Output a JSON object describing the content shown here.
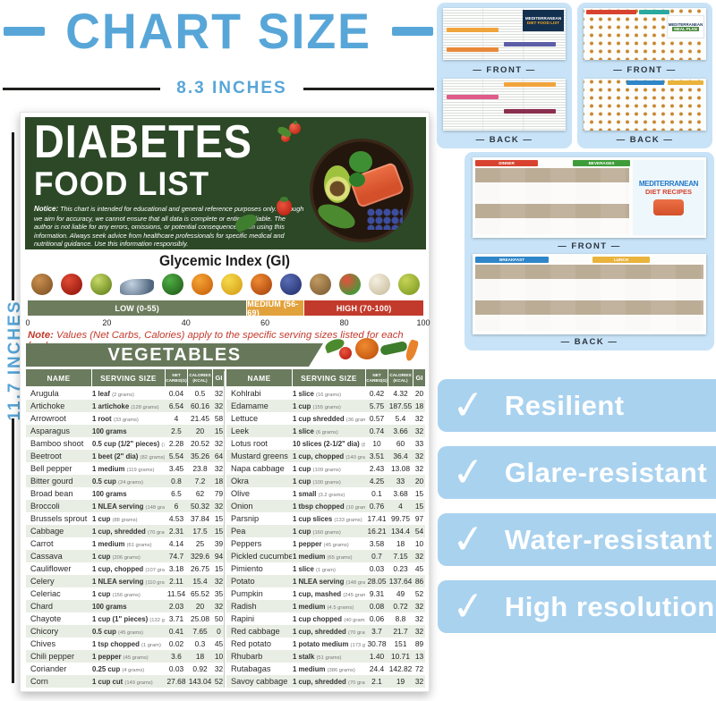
{
  "colors": {
    "accent_blue": "#58a6d8",
    "card_blue": "#c8e3f7",
    "badge_blue": "#a9d2ef",
    "poster_green": "#2c4827",
    "olive_green": "#6b7b5e",
    "low_band": "#6d7c5d",
    "medium_band": "#e2a23b",
    "high_band": "#c23a2b",
    "note_red": "#c3392c"
  },
  "size_banner": {
    "title": "CHART SIZE",
    "width_label": "8.3 INCHES",
    "height_label": "11.7 INCHES"
  },
  "poster": {
    "title_line1": "DIABETES",
    "title_line2": "FOOD LIST",
    "notice_bold": "Notice:",
    "notice_text": "This chart is intended for educational and general reference purposes only. Although we aim for accuracy, we cannot ensure that all data is complete or entirely reliable. The author is not liable for any errors, omissions, or potential consequences from using this information. Always seek advice from healthcare professionals for specific medical and nutritional guidance. Use this information responsibly.",
    "gi": {
      "title": "Glycemic Index (GI)",
      "icons": [
        {
          "name": "almonds",
          "c1": "#c98f4e",
          "c2": "#8a5a2b"
        },
        {
          "name": "apple",
          "c1": "#e04a35",
          "c2": "#9c1d10"
        },
        {
          "name": "avocado",
          "c1": "#c9d96a",
          "c2": "#6f8c22"
        },
        {
          "name": "fish",
          "c1": "#c3d2e2",
          "c2": "#51677f",
          "wide": true
        },
        {
          "name": "broccoli",
          "c1": "#4fae45",
          "c2": "#27691f"
        },
        {
          "name": "oranges",
          "c1": "#f5a435",
          "c2": "#d06a10"
        },
        {
          "name": "banana",
          "c1": "#f7d94c",
          "c2": "#d9a81e"
        },
        {
          "name": "pumpkin",
          "c1": "#ef8a32",
          "c2": "#b24e12"
        },
        {
          "name": "blueberries",
          "c1": "#5a6cb6",
          "c2": "#2b3a78"
        },
        {
          "name": "potato",
          "c1": "#c29a62",
          "c2": "#85653a"
        },
        {
          "name": "watermelon",
          "c1": "#e6503c",
          "c2": "#3f9c3a"
        },
        {
          "name": "rice",
          "c1": "#f4efdf",
          "c2": "#cfc4a7"
        },
        {
          "name": "guava",
          "c1": "#c6d457",
          "c2": "#88a229"
        }
      ],
      "bands": [
        {
          "label": "LOW (0-55)",
          "range": [
            0,
            55
          ]
        },
        {
          "label": "MEDIUM (56-69)",
          "range": [
            56,
            69
          ]
        },
        {
          "label": "HIGH (70-100)",
          "range": [
            70,
            100
          ]
        }
      ],
      "ticks": [
        "0",
        "20",
        "40",
        "60",
        "80",
        "100"
      ]
    },
    "note_bold": "Note:",
    "note_text": "Values (Net Carbs, Calories) apply to the specific serving sizes listed for each food",
    "table": {
      "section_title": "VEGETABLES",
      "headers": [
        "NAME",
        "SERVING SIZE",
        "NET CARBS(G)",
        "CALORIES (KCAL)",
        "GI"
      ],
      "left_rows": [
        {
          "name": "Arugula",
          "serving": "1 leaf",
          "detail": "(2 grams)",
          "carbs": "0.04",
          "cal": "0.5",
          "gi": "32"
        },
        {
          "name": "Artichoke",
          "serving": "1 artichoke",
          "detail": "(128 grams)",
          "carbs": "6.54",
          "cal": "60.16",
          "gi": "32"
        },
        {
          "name": "Arrowroot",
          "serving": "1 root",
          "detail": "(33 grams)",
          "carbs": "4",
          "cal": "21.45",
          "gi": "58"
        },
        {
          "name": "Asparagus",
          "serving": "100 grams",
          "detail": "",
          "carbs": "2.5",
          "cal": "20",
          "gi": "15"
        },
        {
          "name": "Bamboo shoot",
          "serving": "0.5 cup (1/2\" pieces)",
          "detail": "(76 grams)",
          "carbs": "2.28",
          "cal": "20.52",
          "gi": "32"
        },
        {
          "name": "Beetroot",
          "serving": "1 beet (2\" dia)",
          "detail": "(82 grams)",
          "carbs": "5.54",
          "cal": "35.26",
          "gi": "64"
        },
        {
          "name": "Bell pepper",
          "serving": "1 medium",
          "detail": "(119 grams)",
          "carbs": "3.45",
          "cal": "23.8",
          "gi": "32"
        },
        {
          "name": "Bitter gourd",
          "serving": "0.5 cup",
          "detail": "(24 grams)",
          "carbs": "0.8",
          "cal": "7.2",
          "gi": "18"
        },
        {
          "name": "Broad bean",
          "serving": "100 grams",
          "detail": "",
          "carbs": "6.5",
          "cal": "62",
          "gi": "79"
        },
        {
          "name": "Broccoli",
          "serving": "1 NLEA serving",
          "detail": "(148 grams)",
          "carbs": "6",
          "cal": "50.32",
          "gi": "32"
        },
        {
          "name": "Brussels sprout",
          "serving": "1 cup",
          "detail": "(88 grams)",
          "carbs": "4.53",
          "cal": "37.84",
          "gi": "15"
        },
        {
          "name": "Cabbage",
          "serving": "1 cup, shredded",
          "detail": "(70 grams)",
          "carbs": "2.31",
          "cal": "17.5",
          "gi": "15"
        },
        {
          "name": "Carrot",
          "serving": "1 medium",
          "detail": "(61 grams)",
          "carbs": "4.14",
          "cal": "25",
          "gi": "39"
        },
        {
          "name": "Cassava",
          "serving": "1 cup",
          "detail": "(206 grams)",
          "carbs": "74.7",
          "cal": "329.6",
          "gi": "94"
        },
        {
          "name": "Cauliflower",
          "serving": "1 cup, chopped",
          "detail": "(107 grams)",
          "carbs": "3.18",
          "cal": "26.75",
          "gi": "15"
        },
        {
          "name": "Celery",
          "serving": "1 NLEA serving",
          "detail": "(110 grams)",
          "carbs": "2.11",
          "cal": "15.4",
          "gi": "32"
        },
        {
          "name": "Celeriac",
          "serving": "1 cup",
          "detail": "(156 grams)",
          "carbs": "11.54",
          "cal": "65.52",
          "gi": "35"
        },
        {
          "name": "Chard",
          "serving": "100 grams",
          "detail": "",
          "carbs": "2.03",
          "cal": "20",
          "gi": "32"
        },
        {
          "name": "Chayote",
          "serving": "1 cup (1\" pieces)",
          "detail": "(132 grams)",
          "carbs": "3.71",
          "cal": "25.08",
          "gi": "50"
        },
        {
          "name": "Chicory",
          "serving": "0.5 cup",
          "detail": "(45 grams)",
          "carbs": "0.41",
          "cal": "7.65",
          "gi": "0"
        },
        {
          "name": "Chives",
          "serving": "1 tsp chopped",
          "detail": "(1 gram)",
          "carbs": "0.02",
          "cal": "0.3",
          "gi": "45"
        },
        {
          "name": "Chili pepper",
          "serving": "1 pepper",
          "detail": "(45 grams)",
          "carbs": "3.6",
          "cal": "18",
          "gi": "10"
        },
        {
          "name": "Coriander",
          "serving": "0.25 cup",
          "detail": "(4 grams)",
          "carbs": "0.03",
          "cal": "0.92",
          "gi": "32"
        },
        {
          "name": "Corn",
          "serving": "1 cup cut",
          "detail": "(149 grams)",
          "carbs": "27.68",
          "cal": "143.04",
          "gi": "52"
        }
      ],
      "right_rows": [
        {
          "name": "Kohlrabi",
          "serving": "1 slice",
          "detail": "(16 grams)",
          "carbs": "0.42",
          "cal": "4.32",
          "gi": "20"
        },
        {
          "name": "Edamame",
          "serving": "1 cup",
          "detail": "(155 grams)",
          "carbs": "5.75",
          "cal": "187.55",
          "gi": "18"
        },
        {
          "name": "Lettuce",
          "serving": "1 cup shredded",
          "detail": "(36 grams)",
          "carbs": "0.57",
          "cal": "5.4",
          "gi": "32"
        },
        {
          "name": "Leek",
          "serving": "1 slice",
          "detail": "(6 grams)",
          "carbs": "0.74",
          "cal": "3.66",
          "gi": "32"
        },
        {
          "name": "Lotus root",
          "serving": "10 slices (2-1/2\" dia)",
          "detail": "(81 grams)",
          "carbs": "10",
          "cal": "60",
          "gi": "33"
        },
        {
          "name": "Mustard greens",
          "serving": "1 cup, chopped",
          "detail": "(140 grams)",
          "carbs": "3.51",
          "cal": "36.4",
          "gi": "32"
        },
        {
          "name": "Napa cabbage",
          "serving": "1 cup",
          "detail": "(109 grams)",
          "carbs": "2.43",
          "cal": "13.08",
          "gi": "32"
        },
        {
          "name": "Okra",
          "serving": "1 cup",
          "detail": "(100 grams)",
          "carbs": "4.25",
          "cal": "33",
          "gi": "20"
        },
        {
          "name": "Olive",
          "serving": "1 small",
          "detail": "(3.2 grams)",
          "carbs": "0.1",
          "cal": "3.68",
          "gi": "15"
        },
        {
          "name": "Onion",
          "serving": "1 tbsp chopped",
          "detail": "(10 grams)",
          "carbs": "0.76",
          "cal": "4",
          "gi": "15"
        },
        {
          "name": "Parsnip",
          "serving": "1 cup slices",
          "detail": "(133 grams)",
          "carbs": "17.41",
          "cal": "99.75",
          "gi": "97"
        },
        {
          "name": "Pea",
          "serving": "1 cup",
          "detail": "(160 grams)",
          "carbs": "16.21",
          "cal": "134.4",
          "gi": "54"
        },
        {
          "name": "Peppers",
          "serving": "1 pepper",
          "detail": "(45 grams)",
          "carbs": "3.58",
          "cal": "18",
          "gi": "10"
        },
        {
          "name": "Pickled cucumber",
          "serving": "1 medium",
          "detail": "(65 grams)",
          "carbs": "0.7",
          "cal": "7.15",
          "gi": "32"
        },
        {
          "name": "Pimiento",
          "serving": "1 slice",
          "detail": "(1 gram)",
          "carbs": "0.03",
          "cal": "0.23",
          "gi": "45"
        },
        {
          "name": "Potato",
          "serving": "1 NLEA serving",
          "detail": "(148 grams)",
          "carbs": "28.05",
          "cal": "137.64",
          "gi": "86"
        },
        {
          "name": "Pumpkin",
          "serving": "1 cup, mashed",
          "detail": "(245 grams)",
          "carbs": "9.31",
          "cal": "49",
          "gi": "52"
        },
        {
          "name": "Radish",
          "serving": "1 medium",
          "detail": "(4.5 grams)",
          "carbs": "0.08",
          "cal": "0.72",
          "gi": "32"
        },
        {
          "name": "Rapini",
          "serving": "1 cup chopped",
          "detail": "(40 grams)",
          "carbs": "0.06",
          "cal": "8.8",
          "gi": "32"
        },
        {
          "name": "Red cabbage",
          "serving": "1 cup, shredded",
          "detail": "(70 grams)",
          "carbs": "3.7",
          "cal": "21.7",
          "gi": "32"
        },
        {
          "name": "Red potato",
          "serving": "1 potato medium",
          "detail": "(173 grams)",
          "carbs": "30.78",
          "cal": "151",
          "gi": "89"
        },
        {
          "name": "Rhubarb",
          "serving": "1 stalk",
          "detail": "(51 grams)",
          "carbs": "1.40",
          "cal": "10.71",
          "gi": "13"
        },
        {
          "name": "Rutabagas",
          "serving": "1 medium",
          "detail": "(386 grams)",
          "carbs": "24.4",
          "cal": "142.82",
          "gi": "72"
        },
        {
          "name": "Savoy cabbage",
          "serving": "1 cup, shredded",
          "detail": "(70 grams)",
          "carbs": "2.1",
          "cal": "19",
          "gi": "32"
        }
      ]
    }
  },
  "gallery": {
    "front_label": "— FRONT —",
    "back_label": "— BACK —",
    "card1": {
      "title_line1": "MEDITERRANEAN",
      "title_line2": "DIET FOOD LIST"
    },
    "card2": {
      "title_line1": "MEDITERRANEAN",
      "title_line2": "MEAL PLAN"
    },
    "card3": {
      "title_line1": "MEDITERRANEAN",
      "title_line2": "DIET RECIPES",
      "front_sections": [
        "DINNER",
        "BEVERAGES"
      ],
      "back_sections": [
        "BREAKFAST",
        "LUNCH"
      ]
    }
  },
  "features": [
    {
      "icon": "check-icon",
      "label": "Resilient"
    },
    {
      "icon": "check-icon",
      "label": "Glare-resistant"
    },
    {
      "icon": "check-icon",
      "label": "Water-resistant"
    },
    {
      "icon": "check-icon",
      "label": "High resolution"
    }
  ]
}
